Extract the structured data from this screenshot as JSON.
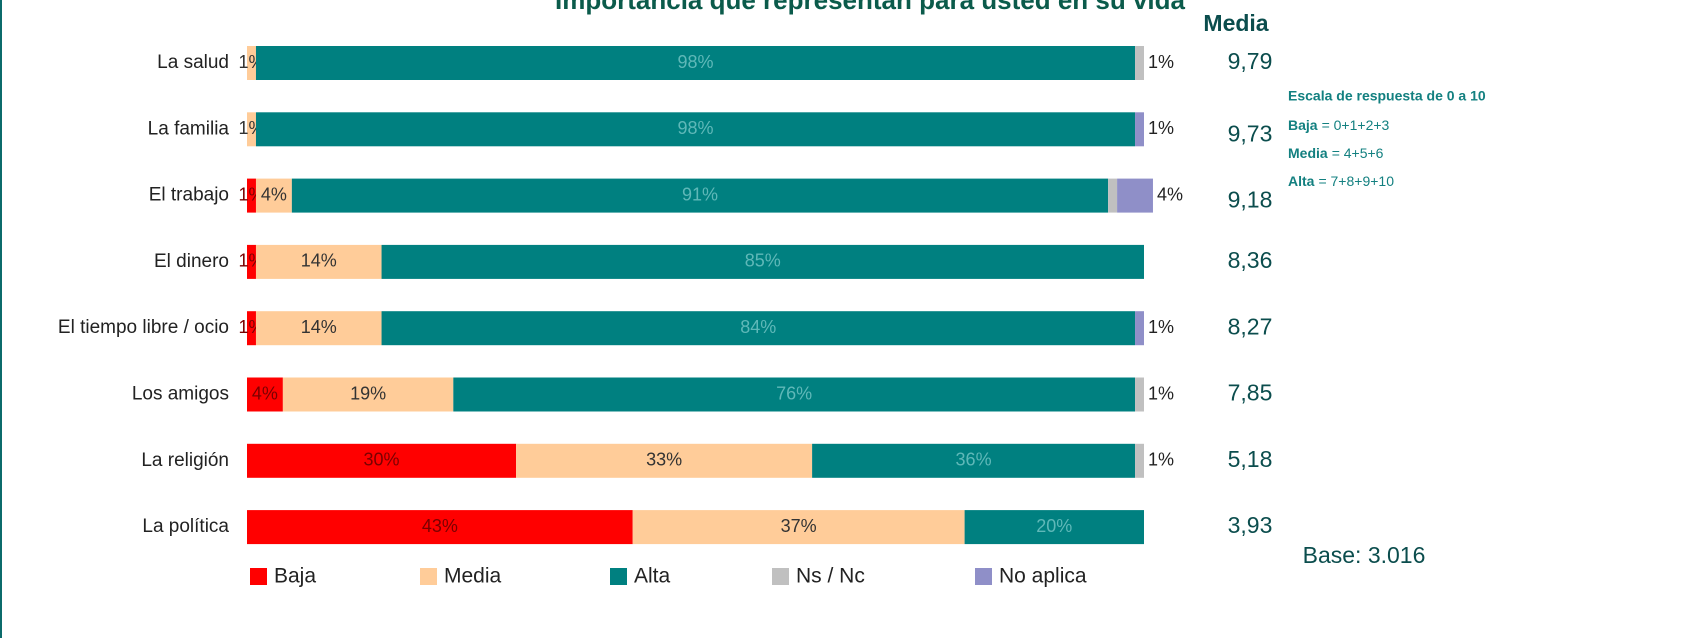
{
  "chart_data": {
    "type": "stacked_barh",
    "title": "Importancia que representan para usted en su vida",
    "categories": [
      "La salud",
      "La familia",
      "El trabajo",
      "El dinero",
      "El tiempo libre / ocio",
      "Los amigos",
      "La religión",
      "La política"
    ],
    "xlim": [
      0,
      100
    ],
    "series": [
      {
        "name": "Baja",
        "color": "#ff0000",
        "values": [
          0,
          0,
          1,
          1,
          1,
          4,
          30,
          43
        ],
        "value_labels": [
          null,
          null,
          "1%",
          "1%",
          "1%",
          "4%",
          "30%",
          "43%"
        ]
      },
      {
        "name": "Media",
        "color": "#ffcc99",
        "values": [
          1,
          1,
          4,
          14,
          14,
          19,
          33,
          37
        ],
        "value_labels": [
          "1%",
          "1%",
          "4%",
          "14%",
          "14%",
          "19%",
          "33%",
          "37%"
        ]
      },
      {
        "name": "Alta",
        "color": "#008080",
        "values": [
          98,
          98,
          91,
          85,
          84,
          76,
          36,
          20
        ],
        "value_labels": [
          "98%",
          "98%",
          "91%",
          "85%",
          "84%",
          "76%",
          "36%",
          "20%"
        ]
      },
      {
        "name": "Ns / Nc",
        "color": "#c0c0c0",
        "values": [
          1,
          0,
          1,
          0,
          0,
          1,
          1,
          0
        ],
        "value_labels": [
          "1%",
          null,
          "1%",
          null,
          null,
          "1%",
          "1%",
          null
        ]
      },
      {
        "name": "No aplica",
        "color": "#8f8fc8",
        "values": [
          0,
          1,
          4,
          0,
          1,
          0,
          0,
          0
        ],
        "value_labels": [
          null,
          "1%",
          "4%",
          null,
          "1%",
          null,
          null,
          null
        ]
      }
    ],
    "media": {
      "title": "Media",
      "values": [
        9.79,
        9.73,
        9.18,
        8.36,
        8.27,
        7.85,
        5.18,
        3.93
      ],
      "value_labels": [
        "9,79",
        "9,73",
        "9,18",
        "8,36",
        "8,27",
        "7,85",
        "5,18",
        "3,93"
      ]
    },
    "notes": {
      "title": "Escala de respuesta de 0 a 10",
      "lines": [
        {
          "term": "Baja",
          "text": "= 0+1+2+3"
        },
        {
          "term": "Media",
          "text": "= 4+5+6"
        },
        {
          "term": "Alta",
          "text": "= 7+8+9+10"
        }
      ]
    },
    "base": "Base: 3.016"
  }
}
